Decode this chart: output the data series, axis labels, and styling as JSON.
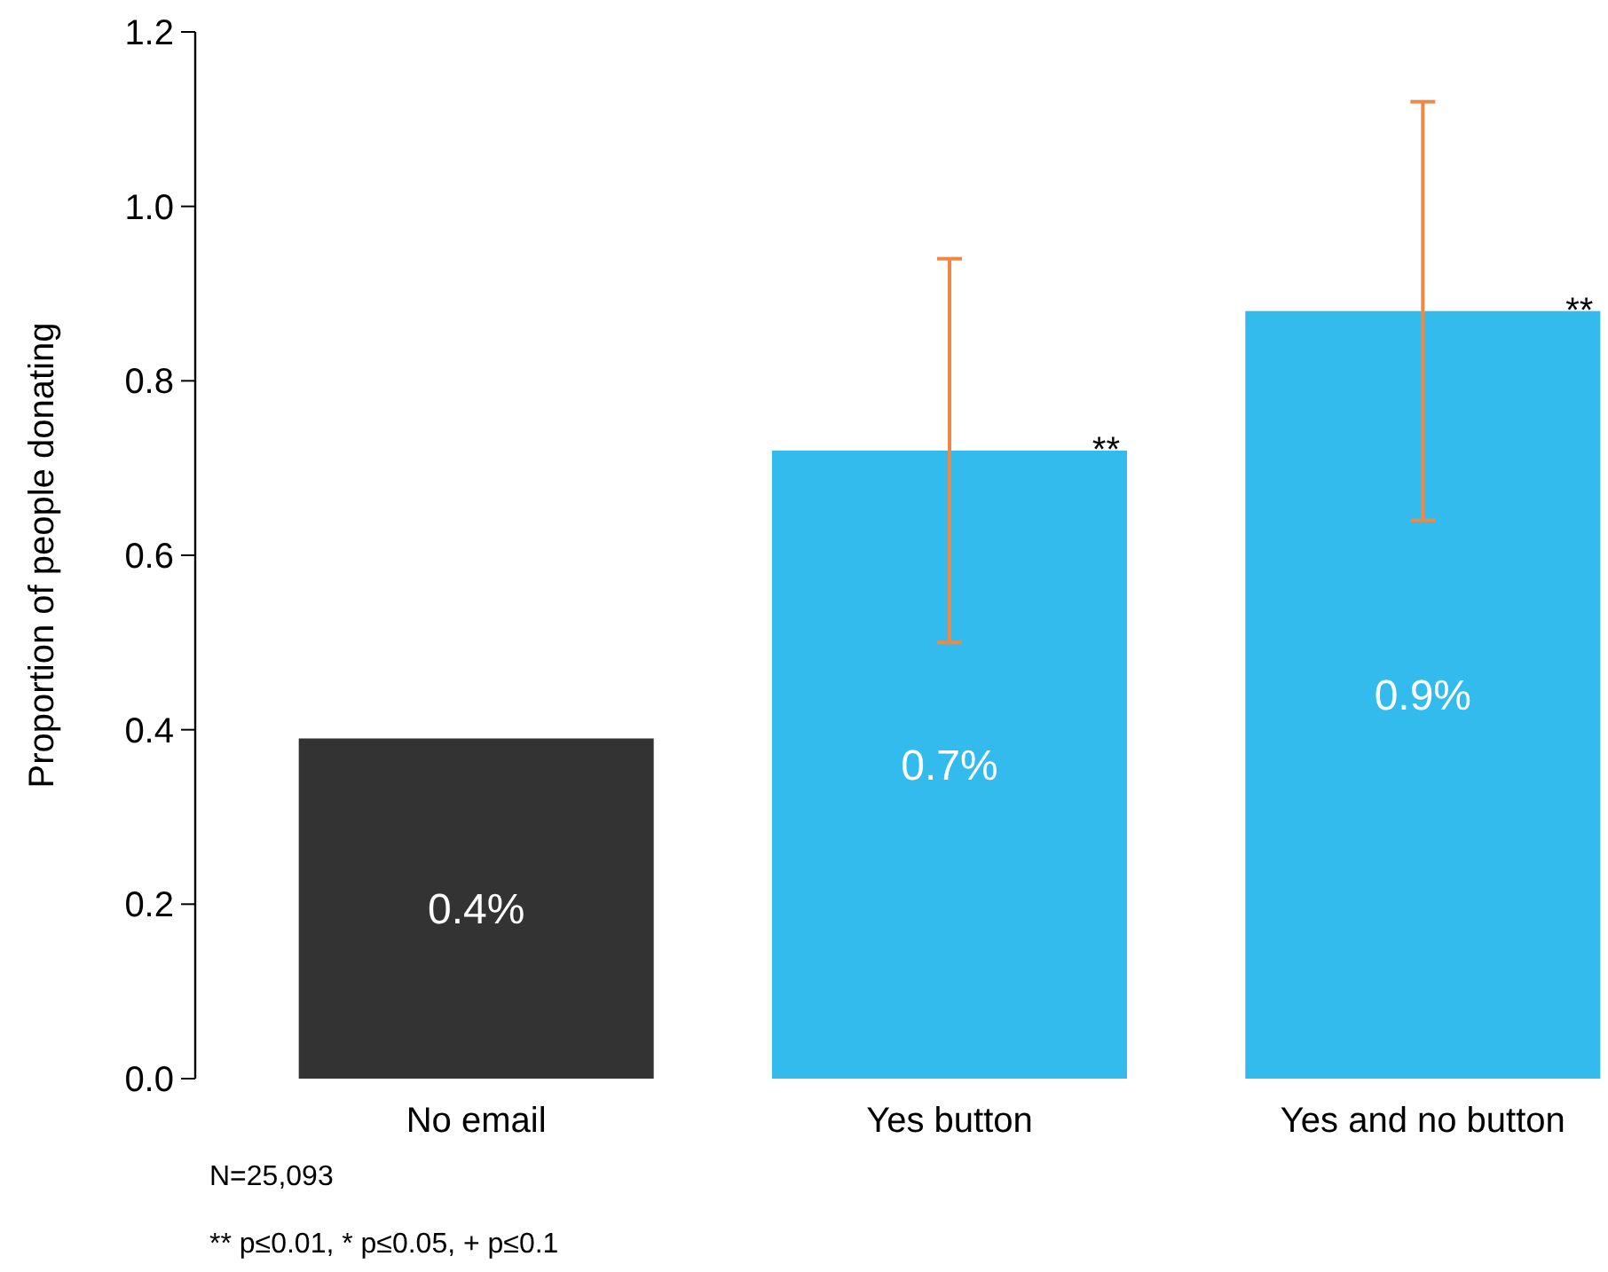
{
  "chart_data": {
    "type": "bar",
    "ylabel": "Proportion of people donating",
    "categories": [
      "No email",
      "Yes button",
      "Yes and no button"
    ],
    "values": [
      0.39,
      0.72,
      0.88
    ],
    "colors": [
      "#333333",
      "#33bbee",
      "#33bbee"
    ],
    "errors": [
      null,
      [
        0.5,
        0.94
      ],
      [
        0.64,
        1.12
      ]
    ],
    "value_labels": [
      "0.4%",
      "0.7%",
      "0.9%"
    ],
    "ylim": [
      0,
      1.2
    ],
    "yticks": [
      {
        "value": 0,
        "label": "0.0"
      },
      0.2,
      0.4,
      0.6,
      0.8,
      {
        "value": 1,
        "label": "1.0"
      },
      1.2
    ],
    "grid": false,
    "annotations": [
      "**",
      "**",
      "N=25,093",
      "** p≤0.01, * p≤0.05, + p≤0.1"
    ]
  }
}
